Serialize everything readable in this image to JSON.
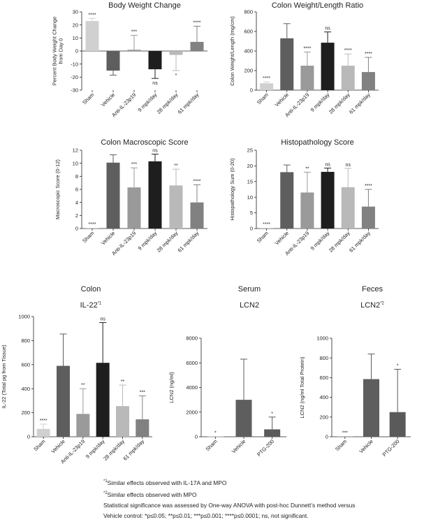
{
  "colors": {
    "sham": "#d0d0d0",
    "vehicle": "#5e5e5e",
    "anti": "#9a9a9a",
    "mpk9": "#1e1e1e",
    "mpk28": "#b9b9b9",
    "mpk61": "#818181",
    "pos": "#a8a8a8",
    "neg": "#5a5a5a"
  },
  "headers": {
    "colon": "Colon",
    "il22_label": "IL-22",
    "il22_mark": "*1",
    "serum": "Serum",
    "serum_sub": "LCN2",
    "feces": "Feces",
    "feces_sub": "LCN2",
    "feces_mark": "*2"
  },
  "footnotes": [
    {
      "mark": "*1",
      "text": "Similar effects observed with IL-17A and MPO"
    },
    {
      "mark": "*2",
      "text": "Similar effects observed with MPO"
    },
    {
      "mark": "",
      "text": "Statistical significance was assessed by One-way ANOVA with post-hoc Dunnett’s method versus"
    },
    {
      "mark": "",
      "text": "Vehicle control:  *p≤0.05; **p≤0.01; ***p≤0.001; ****p≤0.0001; ns, not significant."
    }
  ],
  "chart_data": [
    {
      "id": "bw",
      "type": "bar",
      "title": "Body Weight Change",
      "ylabel": "Percent Body Weight Change from Day 0",
      "categories": [
        "Sham",
        "Vehicle",
        "Anti-IL-23p19",
        "9 mpk/day",
        "28 mpk/day",
        "61 mpk/day"
      ],
      "values": [
        23,
        -15,
        1,
        -14,
        -3,
        7
      ],
      "errors": [
        2,
        3.5,
        11,
        7,
        12,
        12
      ],
      "sig": [
        "****",
        "",
        "***",
        "ns",
        "*",
        "****"
      ],
      "ylim": [
        -30,
        30
      ],
      "ticks": [
        -30,
        -20,
        -10,
        0,
        10,
        20,
        30
      ],
      "colors": [
        "sham",
        "vehicle",
        "anti",
        "mpk9",
        "mpk28",
        "mpk61"
      ]
    },
    {
      "id": "cw",
      "type": "bar",
      "title": "Colon Weight/Length Ratio",
      "ylabel": "Colon Weight/Length (mg/cm)",
      "categories": [
        "Sham",
        "Vehicle",
        "Anti-IL-23p19",
        "9 mpk/day",
        "28 mpk/day",
        "61 mpk/day"
      ],
      "values": [
        70,
        530,
        250,
        485,
        250,
        185
      ],
      "errors": [
        15,
        150,
        140,
        110,
        120,
        150
      ],
      "sig": [
        "****",
        "",
        "****",
        "ns",
        "****",
        "****"
      ],
      "ylim": [
        0,
        800
      ],
      "ticks": [
        0,
        200,
        400,
        600,
        800
      ],
      "colors": [
        "sham",
        "vehicle",
        "anti",
        "mpk9",
        "mpk28",
        "mpk61"
      ]
    },
    {
      "id": "cm",
      "type": "bar",
      "title": "Colon Macroscopic Score",
      "ylabel": "Macroscopic Score (0-12)",
      "categories": [
        "Sham",
        "Vehicle",
        "Anti-IL-23p19",
        "9 mpk/day",
        "28 mpk/day",
        "61 mpk/day"
      ],
      "values": [
        0.1,
        10.1,
        6.3,
        10.3,
        6.6,
        4.0
      ],
      "errors": [
        0,
        1.2,
        3.0,
        1.1,
        2.5,
        2.7
      ],
      "sig": [
        "****",
        "",
        "***",
        "ns",
        "**",
        "****"
      ],
      "ylim": [
        0,
        12
      ],
      "ticks": [
        0,
        2,
        4,
        6,
        8,
        10,
        12
      ],
      "colors": [
        "sham",
        "vehicle",
        "anti",
        "mpk9",
        "mpk28",
        "mpk61"
      ]
    },
    {
      "id": "hp",
      "type": "bar",
      "title": "Histopathology Score",
      "ylabel": "Histopathology Sum (0-20)",
      "categories": [
        "Sham",
        "Vehicle",
        "Anti-IL-23p19",
        "9 mpk/day",
        "28 mpk/day",
        "61 mpk/day"
      ],
      "values": [
        0.2,
        18,
        11.5,
        18.1,
        13.2,
        7.0
      ],
      "errors": [
        0,
        2.3,
        6.5,
        1.2,
        6.0,
        5.5
      ],
      "sig": [
        "****",
        "",
        "**",
        "ns",
        "ns",
        "****"
      ],
      "ylim": [
        0,
        25
      ],
      "ticks": [
        0,
        5,
        10,
        15,
        20,
        25
      ],
      "colors": [
        "sham",
        "vehicle",
        "anti",
        "mpk9",
        "mpk28",
        "mpk61"
      ]
    },
    {
      "id": "il22",
      "type": "bar",
      "title": "",
      "ylabel": "IL-22 (Total pg from Tissue)",
      "categories": [
        "Sham",
        "Vehicle",
        "Anti-IL-23p19",
        "9 mpk/day",
        "28 mpk/day",
        "61 mpk/day"
      ],
      "values": [
        65,
        590,
        190,
        615,
        255,
        145
      ],
      "errors": [
        40,
        265,
        210,
        335,
        175,
        195
      ],
      "sig": [
        "****",
        "",
        "**",
        "ns",
        "**",
        "***"
      ],
      "ylim": [
        0,
        1000
      ],
      "ticks": [
        0,
        200,
        400,
        600,
        800,
        1000
      ],
      "colors": [
        "sham",
        "vehicle",
        "anti",
        "mpk9",
        "mpk28",
        "mpk61"
      ]
    },
    {
      "id": "serum",
      "type": "bar",
      "title": "",
      "ylabel": "LCN2 (ng/ml)",
      "categories": [
        "Sham",
        "Vehicle",
        "PTG-200"
      ],
      "values": [
        30,
        3000,
        600
      ],
      "errors": [
        0,
        3300,
        1000
      ],
      "sig": [
        "*",
        "",
        "*"
      ],
      "ylim": [
        0,
        8000
      ],
      "ticks": [
        0,
        2000,
        4000,
        6000,
        8000
      ],
      "colors": [
        "pos",
        "vehicle",
        "neg"
      ]
    },
    {
      "id": "feces",
      "type": "bar",
      "title": "",
      "ylabel": "LCN2 (ng/ml Total Protein)",
      "categories": [
        "Sham",
        "Vehicle",
        "PTG-200"
      ],
      "values": [
        5,
        585,
        250
      ],
      "errors": [
        0,
        255,
        435
      ],
      "sig": [
        "***",
        "",
        "*"
      ],
      "ylim": [
        0,
        1000
      ],
      "ticks": [
        0,
        200,
        400,
        600,
        800,
        1000
      ],
      "colors": [
        "pos",
        "vehicle",
        "neg"
      ]
    }
  ]
}
